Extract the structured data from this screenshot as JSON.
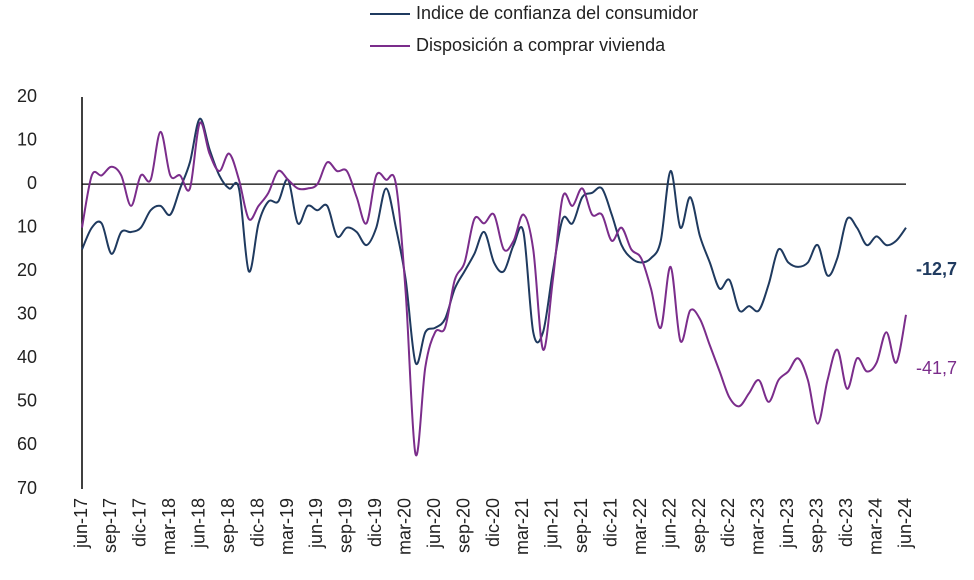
{
  "chart_data": {
    "type": "line",
    "categories": [
      "jun-17",
      null,
      null,
      "sep-17",
      null,
      null,
      "dic-17",
      null,
      null,
      "mar-18",
      null,
      null,
      "jun-18",
      null,
      null,
      "sep-18",
      null,
      null,
      "dic-18",
      null,
      null,
      "mar-19",
      null,
      null,
      "jun-19",
      null,
      null,
      "sep-19",
      null,
      null,
      "dic-19",
      null,
      null,
      "mar-20",
      null,
      null,
      "jun-20",
      null,
      null,
      "sep-20",
      null,
      null,
      "dic-20",
      null,
      null,
      "mar-21",
      null,
      null,
      "jun-21",
      null,
      null,
      "sep-21",
      null,
      null,
      "dic-21",
      null,
      null,
      "mar-22",
      null,
      null,
      "jun-22",
      null,
      null,
      "sep-22",
      null,
      null,
      "dic-22",
      null,
      null,
      "mar-23",
      null,
      null,
      "jun-23",
      null,
      null,
      "sep-23",
      null,
      null,
      "dic-23",
      null,
      null,
      "mar-24",
      null,
      null,
      "jun-24"
    ],
    "series": [
      {
        "name": "Indice de confianza del consumidor",
        "color": "#1f3a5f",
        "values": [
          -15,
          -10,
          -9,
          -16,
          -11,
          -11,
          -10,
          -6,
          -5,
          -7,
          -1,
          5,
          15,
          8,
          2,
          -1,
          -1,
          -20,
          -9,
          -4,
          -4,
          1,
          -9,
          -5,
          -6,
          -5,
          -12,
          -10,
          -11,
          -14,
          -10,
          -1,
          -10,
          -22,
          -41,
          -34,
          -33,
          -31,
          -24,
          -20,
          -16,
          -11,
          -18,
          -20,
          -14,
          -11,
          -34,
          -34,
          -20,
          -8,
          -9,
          -3,
          -2,
          -1,
          -7,
          -14,
          -17,
          -18,
          -17,
          -13,
          3,
          -10,
          -3,
          -12,
          -18,
          -24,
          -22,
          -29,
          -28,
          -29,
          -23,
          -15,
          -18,
          -19,
          -18,
          -14,
          -21,
          -17,
          -8,
          -10,
          -14,
          -12,
          -14,
          -13,
          -10
        ]
      },
      {
        "name": "Disposición a comprar vivienda",
        "color": "#7b2d8b",
        "values": [
          -10,
          2,
          2,
          4,
          2,
          -5,
          2,
          1,
          12,
          2,
          2,
          -1,
          14,
          7,
          3,
          7,
          1,
          -8,
          -5,
          -2,
          3,
          1,
          -1,
          -1,
          0,
          5,
          3,
          3,
          -3,
          -9,
          2,
          1,
          0,
          -25,
          -62,
          -42,
          -34,
          -33,
          -22,
          -18,
          -8,
          -9,
          -7,
          -15,
          -13,
          -7,
          -15,
          -38,
          -22,
          -3,
          -5,
          -1,
          -7,
          -7,
          -13,
          -10,
          -15,
          -17,
          -24,
          -33,
          -19,
          -36,
          -29,
          -31,
          -37,
          -43,
          -49,
          -51,
          -48,
          -45,
          -50,
          -45,
          -43,
          -40,
          -45,
          -55,
          -45,
          -38,
          -47,
          -40,
          -43,
          -41,
          -34,
          -41,
          -30
        ]
      }
    ],
    "annotations": [
      {
        "text": "-12,7",
        "color": "#1f3a5f",
        "bold": true
      },
      {
        "text": "-41,7",
        "color": "#7b2d8b",
        "bold": false
      }
    ],
    "ylim": [
      -70,
      20
    ],
    "yticks": [
      20,
      10,
      0,
      {
        "value": -10,
        "label": "10"
      },
      {
        "value": -20,
        "label": "20"
      },
      {
        "value": -30,
        "label": "30"
      },
      {
        "value": -40,
        "label": "40"
      },
      {
        "value": -50,
        "label": "50"
      },
      {
        "value": -60,
        "label": "60"
      },
      {
        "value": -70,
        "label": "70"
      }
    ],
    "grid": false
  }
}
